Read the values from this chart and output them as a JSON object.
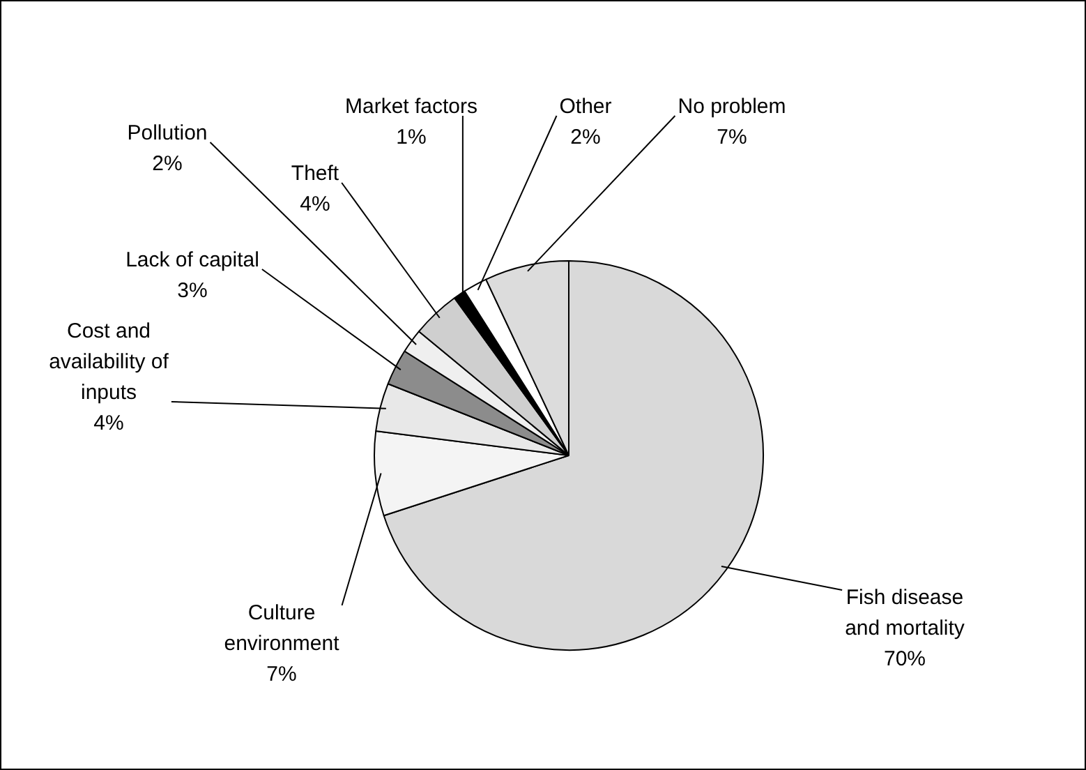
{
  "chart_data": {
    "type": "pie",
    "categories": [
      "Fish disease and mortality",
      "Culture environment",
      "Cost and availability of inputs",
      "Lack of capital",
      "Pollution",
      "Theft",
      "Market factors",
      "Other",
      "No problem"
    ],
    "values": [
      70,
      7,
      4,
      3,
      2,
      4,
      1,
      2,
      7
    ],
    "value_labels": [
      "70%",
      "7%",
      "4%",
      "3%",
      "2%",
      "4%",
      "1%",
      "2%",
      "7%"
    ],
    "colors": [
      "#d9d9d9",
      "#f4f4f4",
      "#e8e8e8",
      "#8c8c8c",
      "#efefef",
      "#cfcfcf",
      "#000000",
      "#ffffff",
      "#dcdcdc"
    ],
    "legend": false
  }
}
